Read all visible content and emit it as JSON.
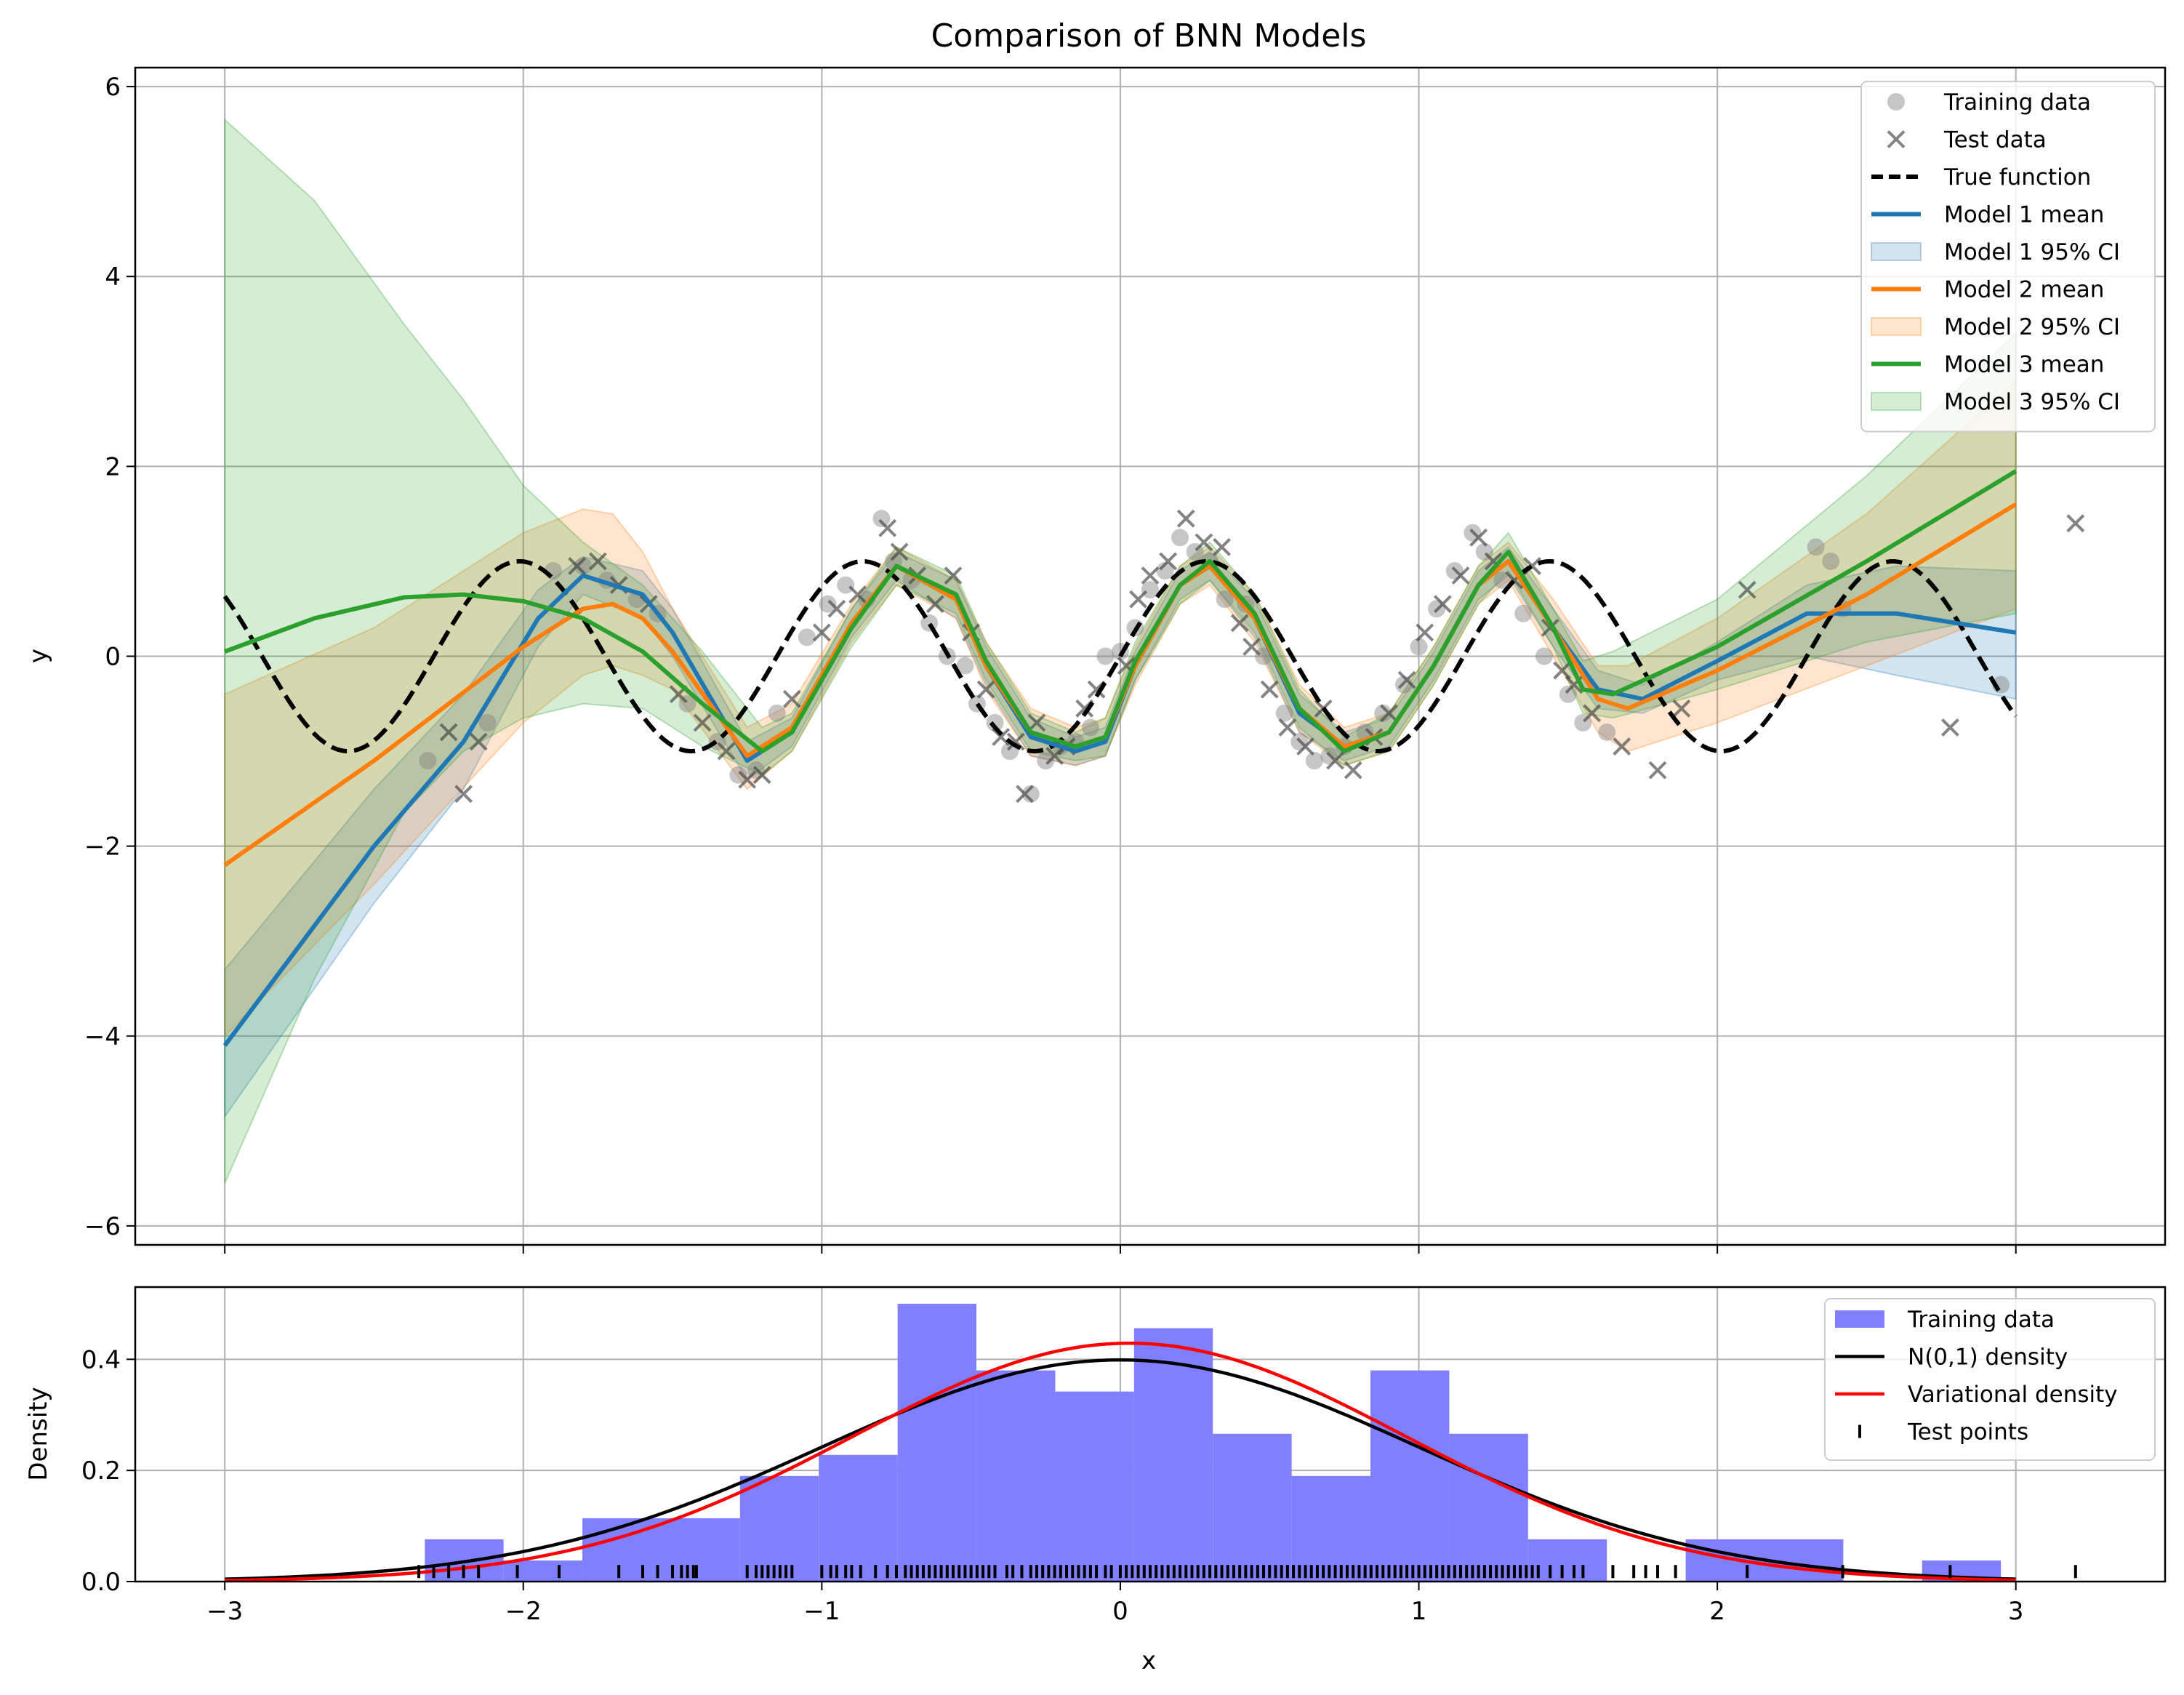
{
  "chart_data": [
    {
      "type": "line",
      "title": "Comparison of BNN Models",
      "xlabel": "",
      "ylabel": "y",
      "xlim": [
        -3.3,
        3.5
      ],
      "ylim": [
        -6.2,
        6.2
      ],
      "xticks": [
        -3,
        -2,
        -1,
        0,
        1,
        2,
        3
      ],
      "xtick_labels": [
        "",
        "",
        "",
        "",
        "",
        "",
        ""
      ],
      "yticks": [
        -6,
        -4,
        -2,
        0,
        2,
        4,
        6
      ],
      "ytick_labels": [
        "−6",
        "−4",
        "−2",
        "0",
        "2",
        "4",
        "6"
      ],
      "grid": true,
      "legend_position": "upper right",
      "legend": [
        {
          "label": "Training data",
          "kind": "marker-circle",
          "color": "#a0a0a0"
        },
        {
          "label": "Test data",
          "kind": "marker-x",
          "color": "#606060"
        },
        {
          "label": "True function",
          "kind": "dashed-line",
          "color": "#000000"
        },
        {
          "label": "Model 1 mean",
          "kind": "line",
          "color": "#1f77b4"
        },
        {
          "label": "Model 1 95% CI",
          "kind": "patch",
          "color": "#1f77b4"
        },
        {
          "label": "Model 2 mean",
          "kind": "line",
          "color": "#ff7f0e"
        },
        {
          "label": "Model 2 95% CI",
          "kind": "patch",
          "color": "#ff7f0e"
        },
        {
          "label": "Model 3 mean",
          "kind": "line",
          "color": "#2ca02c"
        },
        {
          "label": "Model 3 95% CI",
          "kind": "patch",
          "color": "#2ca02c"
        }
      ],
      "true_function": {
        "expression": "sin(2*pi*x/1.15)",
        "x_range": [
          -3,
          3
        ]
      },
      "models": [
        {
          "name": "Model 1",
          "color": "#1f77b4",
          "x": [
            -3.0,
            -2.5,
            -2.2,
            -1.95,
            -1.8,
            -1.6,
            -1.5,
            -1.25,
            -1.1,
            -0.9,
            -0.75,
            -0.55,
            -0.45,
            -0.3,
            -0.15,
            -0.05,
            0.05,
            0.2,
            0.3,
            0.45,
            0.6,
            0.75,
            0.9,
            1.05,
            1.2,
            1.3,
            1.45,
            1.6,
            1.75,
            2.0,
            2.3,
            2.6,
            3.0
          ],
          "mean": [
            -4.1,
            -2.0,
            -0.9,
            0.4,
            0.85,
            0.65,
            0.25,
            -1.1,
            -0.8,
            0.35,
            0.95,
            0.6,
            -0.1,
            -0.85,
            -1.0,
            -0.9,
            -0.1,
            0.75,
            0.95,
            0.4,
            -0.6,
            -0.95,
            -0.8,
            -0.1,
            0.75,
            1.0,
            0.3,
            -0.35,
            -0.45,
            -0.05,
            0.45,
            0.45,
            0.25
          ],
          "lower": [
            -4.85,
            -2.6,
            -1.4,
            0.1,
            0.65,
            0.4,
            0.0,
            -1.3,
            -0.95,
            0.2,
            0.8,
            0.4,
            -0.3,
            -1.05,
            -1.15,
            -1.05,
            -0.25,
            0.6,
            0.8,
            0.2,
            -0.8,
            -1.1,
            -0.95,
            -0.25,
            0.6,
            0.85,
            0.1,
            -0.55,
            -0.6,
            -0.25,
            0.0,
            -0.2,
            -0.45
          ],
          "upper": [
            -3.3,
            -1.4,
            -0.4,
            0.7,
            1.05,
            0.9,
            0.5,
            -0.9,
            -0.65,
            0.5,
            1.1,
            0.8,
            0.1,
            -0.65,
            -0.85,
            -0.75,
            0.05,
            0.9,
            1.1,
            0.6,
            -0.4,
            -0.8,
            -0.65,
            0.05,
            0.9,
            1.15,
            0.5,
            -0.15,
            -0.3,
            0.15,
            0.75,
            0.95,
            0.9
          ]
        },
        {
          "name": "Model 2",
          "color": "#ff7f0e",
          "x": [
            -3.0,
            -2.5,
            -2.0,
            -1.8,
            -1.7,
            -1.6,
            -1.5,
            -1.25,
            -1.1,
            -0.9,
            -0.75,
            -0.55,
            -0.45,
            -0.3,
            -0.15,
            -0.05,
            0.05,
            0.2,
            0.3,
            0.45,
            0.6,
            0.75,
            0.9,
            1.05,
            1.2,
            1.3,
            1.45,
            1.6,
            1.7,
            2.0,
            2.5,
            3.0
          ],
          "mean": [
            -2.2,
            -1.1,
            0.1,
            0.5,
            0.55,
            0.4,
            0.05,
            -1.05,
            -0.75,
            0.35,
            0.95,
            0.6,
            -0.1,
            -0.8,
            -0.95,
            -0.85,
            -0.1,
            0.75,
            0.95,
            0.4,
            -0.55,
            -0.95,
            -0.8,
            -0.1,
            0.75,
            1.0,
            0.3,
            -0.45,
            -0.55,
            -0.15,
            0.65,
            1.6
          ],
          "lower": [
            -4.0,
            -2.4,
            -0.7,
            -0.2,
            -0.1,
            -0.2,
            -0.35,
            -1.4,
            -1.0,
            0.15,
            0.75,
            0.4,
            -0.35,
            -1.05,
            -1.15,
            -1.05,
            -0.3,
            0.55,
            0.75,
            0.15,
            -0.8,
            -1.15,
            -1.0,
            -0.3,
            0.55,
            0.8,
            0.0,
            -0.8,
            -1.0,
            -0.7,
            -0.1,
            0.5
          ],
          "upper": [
            -0.4,
            0.3,
            1.3,
            1.55,
            1.5,
            1.1,
            0.5,
            -0.75,
            -0.5,
            0.55,
            1.15,
            0.8,
            0.15,
            -0.55,
            -0.75,
            -0.65,
            0.1,
            0.95,
            1.15,
            0.65,
            -0.3,
            -0.75,
            -0.6,
            0.1,
            0.95,
            1.2,
            0.6,
            -0.1,
            -0.1,
            0.4,
            1.5,
            2.9
          ]
        },
        {
          "name": "Model 3",
          "color": "#2ca02c",
          "x": [
            -3.0,
            -2.7,
            -2.4,
            -2.2,
            -2.0,
            -1.8,
            -1.6,
            -1.4,
            -1.2,
            -1.1,
            -0.9,
            -0.75,
            -0.55,
            -0.45,
            -0.3,
            -0.15,
            -0.05,
            0.05,
            0.2,
            0.3,
            0.45,
            0.6,
            0.75,
            0.9,
            1.05,
            1.2,
            1.3,
            1.45,
            1.55,
            1.65,
            2.0,
            2.5,
            3.0
          ],
          "mean": [
            0.05,
            0.4,
            0.62,
            0.65,
            0.58,
            0.4,
            0.05,
            -0.5,
            -1.0,
            -0.8,
            0.3,
            0.95,
            0.65,
            -0.05,
            -0.8,
            -0.95,
            -0.85,
            -0.05,
            0.75,
            1.0,
            0.45,
            -0.55,
            -1.0,
            -0.8,
            -0.1,
            0.75,
            1.1,
            0.3,
            -0.35,
            -0.4,
            0.1,
            1.0,
            1.95
          ],
          "lower": [
            -5.55,
            -3.4,
            -1.65,
            -1.0,
            -0.65,
            -0.5,
            -0.55,
            -0.95,
            -1.25,
            -1.0,
            0.1,
            0.75,
            0.45,
            -0.25,
            -1.0,
            -1.1,
            -1.05,
            -0.25,
            0.55,
            0.8,
            0.25,
            -0.75,
            -1.15,
            -1.0,
            -0.3,
            0.55,
            0.9,
            0.1,
            -0.6,
            -0.65,
            -0.35,
            0.15,
            0.45
          ],
          "upper": [
            5.65,
            4.8,
            3.5,
            2.7,
            1.8,
            1.2,
            0.75,
            0.05,
            -0.75,
            -0.6,
            0.5,
            1.15,
            0.85,
            0.15,
            -0.6,
            -0.8,
            -0.65,
            0.15,
            0.95,
            1.2,
            0.65,
            -0.35,
            -0.85,
            -0.6,
            0.1,
            0.95,
            1.3,
            0.5,
            -0.05,
            0.05,
            0.6,
            1.9,
            3.4
          ]
        }
      ],
      "training_data": {
        "x": [
          -2.32,
          -2.12,
          -1.9,
          -1.8,
          -1.72,
          -1.62,
          -1.55,
          -1.45,
          -1.35,
          -1.28,
          -1.22,
          -1.15,
          -1.05,
          -0.98,
          -0.92,
          -0.85,
          -0.8,
          -0.76,
          -0.7,
          -0.64,
          -0.58,
          -0.52,
          -0.48,
          -0.42,
          -0.37,
          -0.3,
          -0.25,
          -0.2,
          -0.15,
          -0.1,
          -0.05,
          0.0,
          0.05,
          0.1,
          0.15,
          0.2,
          0.25,
          0.3,
          0.35,
          0.42,
          0.48,
          0.55,
          0.6,
          0.65,
          0.7,
          0.75,
          0.82,
          0.88,
          0.95,
          1.0,
          1.06,
          1.12,
          1.18,
          1.22,
          1.28,
          1.35,
          1.42,
          1.5,
          1.55,
          1.63,
          2.33,
          2.38,
          2.42,
          2.95
        ],
        "y": [
          -1.1,
          -0.7,
          0.9,
          0.95,
          0.8,
          0.6,
          0.45,
          -0.5,
          -0.9,
          -1.25,
          -1.2,
          -0.6,
          0.2,
          0.55,
          0.75,
          0.6,
          1.45,
          1.0,
          0.8,
          0.35,
          0.0,
          -0.1,
          -0.5,
          -0.7,
          -1.0,
          -1.45,
          -1.1,
          -0.95,
          -0.9,
          -0.75,
          0.0,
          0.05,
          0.3,
          0.7,
          0.9,
          1.25,
          1.1,
          1.0,
          0.6,
          0.55,
          0.0,
          -0.6,
          -0.9,
          -1.1,
          -1.05,
          -0.95,
          -0.8,
          -0.6,
          -0.3,
          0.1,
          0.5,
          0.9,
          1.3,
          1.1,
          0.8,
          0.45,
          0.0,
          -0.4,
          -0.7,
          -0.8,
          1.15,
          1.0,
          0.5,
          -0.3
        ]
      },
      "test_data": {
        "x": [
          -2.25,
          -2.2,
          -2.15,
          -1.82,
          -1.75,
          -1.68,
          -1.58,
          -1.48,
          -1.4,
          -1.32,
          -1.25,
          -1.2,
          -1.1,
          -1.0,
          -0.95,
          -0.88,
          -0.78,
          -0.74,
          -0.68,
          -0.62,
          -0.56,
          -0.5,
          -0.45,
          -0.4,
          -0.35,
          -0.32,
          -0.28,
          -0.22,
          -0.18,
          -0.12,
          -0.08,
          0.02,
          0.06,
          0.1,
          0.16,
          0.22,
          0.28,
          0.34,
          0.4,
          0.44,
          0.5,
          0.56,
          0.62,
          0.68,
          0.72,
          0.78,
          0.85,
          0.9,
          0.96,
          1.02,
          1.08,
          1.14,
          1.2,
          1.25,
          1.32,
          1.38,
          1.44,
          1.48,
          1.52,
          1.58,
          1.68,
          1.8,
          1.88,
          2.1,
          2.78,
          3.2
        ],
        "y": [
          -0.8,
          -1.45,
          -0.9,
          0.95,
          1.0,
          0.75,
          0.55,
          -0.4,
          -0.7,
          -1.0,
          -1.3,
          -1.25,
          -0.45,
          0.25,
          0.5,
          0.65,
          1.35,
          1.1,
          0.85,
          0.55,
          0.85,
          0.25,
          -0.35,
          -0.85,
          -0.9,
          -1.45,
          -0.7,
          -1.05,
          -0.95,
          -0.55,
          -0.35,
          -0.1,
          0.6,
          0.85,
          1.0,
          1.45,
          1.2,
          1.15,
          0.35,
          0.1,
          -0.35,
          -0.75,
          -0.95,
          -0.55,
          -1.1,
          -1.2,
          -0.85,
          -0.6,
          -0.25,
          0.25,
          0.55,
          0.85,
          1.25,
          1.0,
          0.8,
          0.95,
          0.3,
          -0.15,
          -0.3,
          -0.6,
          -0.95,
          -1.2,
          -0.55,
          0.7,
          -0.75,
          1.4
        ]
      }
    },
    {
      "type": "bar",
      "title": "",
      "xlabel": "x",
      "ylabel": "Density",
      "xlim": [
        -3.3,
        3.5
      ],
      "ylim": [
        0,
        0.53
      ],
      "xticks": [
        -3,
        -2,
        -1,
        0,
        1,
        2,
        3
      ],
      "xtick_labels": [
        "−3",
        "−2",
        "−1",
        "0",
        "1",
        "2",
        "3"
      ],
      "yticks": [
        0.0,
        0.2,
        0.4
      ],
      "ytick_labels": [
        "0.0",
        "0.2",
        "0.4"
      ],
      "grid": true,
      "legend_position": "upper right",
      "legend": [
        {
          "label": "Training data",
          "kind": "patch",
          "color": "#8080ff"
        },
        {
          "label": "N(0,1) density",
          "kind": "line",
          "color": "#000000"
        },
        {
          "label": "Variational density",
          "kind": "line",
          "color": "#ff0000"
        },
        {
          "label": "Test points",
          "kind": "tick",
          "color": "#000000"
        }
      ],
      "histogram": {
        "color": "#8080ff",
        "bin_edges": [
          -2.33,
          -2.066,
          -1.802,
          -1.538,
          -1.274,
          -1.01,
          -0.746,
          -0.482,
          -0.218,
          0.046,
          0.31,
          0.574,
          0.838,
          1.102,
          1.366,
          1.63,
          1.894,
          2.158,
          2.422,
          2.686,
          2.95
        ],
        "values": [
          0.076,
          0.038,
          0.114,
          0.114,
          0.19,
          0.228,
          0.5,
          0.38,
          0.342,
          0.456,
          0.266,
          0.19,
          0.38,
          0.266,
          0.076,
          0.0,
          0.076,
          0.076,
          0.0,
          0.038
        ]
      },
      "normal_density": {
        "mean": 0.0,
        "std": 1.0,
        "color": "#000000"
      },
      "variational_density": {
        "mean": 0.03,
        "std": 0.93,
        "color": "#ff0000"
      },
      "test_points_x": [
        -2.35,
        -2.3,
        -2.25,
        -2.2,
        -2.15,
        -2.02,
        -1.88,
        -1.68,
        -1.6,
        -1.55,
        -1.5,
        -1.47,
        -1.45,
        -1.43,
        -1.42,
        -1.25,
        -1.22,
        -1.2,
        -1.18,
        -1.16,
        -1.14,
        -1.12,
        -1.1,
        -1.0,
        -0.97,
        -0.95,
        -0.92,
        -0.9,
        -0.87,
        -0.82,
        -0.78,
        -0.75,
        -0.72,
        -0.7,
        -0.68,
        -0.66,
        -0.64,
        -0.62,
        -0.6,
        -0.58,
        -0.56,
        -0.54,
        -0.52,
        -0.5,
        -0.48,
        -0.46,
        -0.44,
        -0.42,
        -0.38,
        -0.36,
        -0.33,
        -0.3,
        -0.28,
        -0.26,
        -0.24,
        -0.22,
        -0.2,
        -0.18,
        -0.16,
        -0.14,
        -0.12,
        -0.1,
        -0.08,
        -0.05,
        -0.03,
        0.0,
        0.02,
        0.04,
        0.06,
        0.08,
        0.1,
        0.12,
        0.14,
        0.16,
        0.18,
        0.2,
        0.22,
        0.24,
        0.26,
        0.28,
        0.3,
        0.32,
        0.34,
        0.36,
        0.38,
        0.4,
        0.42,
        0.44,
        0.46,
        0.48,
        0.5,
        0.52,
        0.54,
        0.56,
        0.58,
        0.6,
        0.62,
        0.64,
        0.66,
        0.68,
        0.7,
        0.72,
        0.74,
        0.76,
        0.78,
        0.8,
        0.82,
        0.84,
        0.86,
        0.88,
        0.9,
        0.92,
        0.94,
        0.96,
        0.98,
        1.0,
        1.02,
        1.04,
        1.06,
        1.08,
        1.1,
        1.12,
        1.14,
        1.16,
        1.18,
        1.2,
        1.22,
        1.24,
        1.26,
        1.28,
        1.3,
        1.32,
        1.34,
        1.36,
        1.38,
        1.4,
        1.44,
        1.48,
        1.52,
        1.55,
        1.65,
        1.72,
        1.76,
        1.8,
        1.86,
        2.1,
        2.42,
        2.78,
        3.2
      ]
    }
  ]
}
